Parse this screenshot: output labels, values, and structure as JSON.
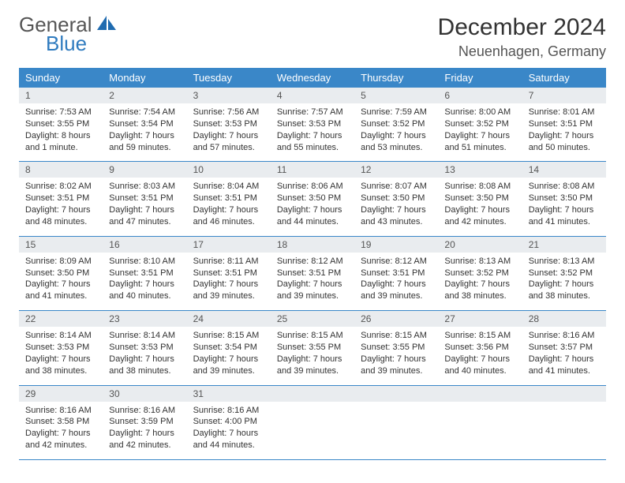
{
  "brand": {
    "word1": "General",
    "word2": "Blue",
    "shape_color": "#1f6bb0"
  },
  "header": {
    "title": "December 2024",
    "location": "Neuenhagen, Germany"
  },
  "colors": {
    "header_bg": "#3a87c8",
    "header_fg": "#ffffff",
    "daynum_bg": "#e9ecef",
    "row_border": "#3a87c8",
    "text": "#333333"
  },
  "day_labels": [
    "Sunday",
    "Monday",
    "Tuesday",
    "Wednesday",
    "Thursday",
    "Friday",
    "Saturday"
  ],
  "weeks": [
    [
      {
        "n": "1",
        "sr": "Sunrise: 7:53 AM",
        "ss": "Sunset: 3:55 PM",
        "d1": "Daylight: 8 hours",
        "d2": "and 1 minute."
      },
      {
        "n": "2",
        "sr": "Sunrise: 7:54 AM",
        "ss": "Sunset: 3:54 PM",
        "d1": "Daylight: 7 hours",
        "d2": "and 59 minutes."
      },
      {
        "n": "3",
        "sr": "Sunrise: 7:56 AM",
        "ss": "Sunset: 3:53 PM",
        "d1": "Daylight: 7 hours",
        "d2": "and 57 minutes."
      },
      {
        "n": "4",
        "sr": "Sunrise: 7:57 AM",
        "ss": "Sunset: 3:53 PM",
        "d1": "Daylight: 7 hours",
        "d2": "and 55 minutes."
      },
      {
        "n": "5",
        "sr": "Sunrise: 7:59 AM",
        "ss": "Sunset: 3:52 PM",
        "d1": "Daylight: 7 hours",
        "d2": "and 53 minutes."
      },
      {
        "n": "6",
        "sr": "Sunrise: 8:00 AM",
        "ss": "Sunset: 3:52 PM",
        "d1": "Daylight: 7 hours",
        "d2": "and 51 minutes."
      },
      {
        "n": "7",
        "sr": "Sunrise: 8:01 AM",
        "ss": "Sunset: 3:51 PM",
        "d1": "Daylight: 7 hours",
        "d2": "and 50 minutes."
      }
    ],
    [
      {
        "n": "8",
        "sr": "Sunrise: 8:02 AM",
        "ss": "Sunset: 3:51 PM",
        "d1": "Daylight: 7 hours",
        "d2": "and 48 minutes."
      },
      {
        "n": "9",
        "sr": "Sunrise: 8:03 AM",
        "ss": "Sunset: 3:51 PM",
        "d1": "Daylight: 7 hours",
        "d2": "and 47 minutes."
      },
      {
        "n": "10",
        "sr": "Sunrise: 8:04 AM",
        "ss": "Sunset: 3:51 PM",
        "d1": "Daylight: 7 hours",
        "d2": "and 46 minutes."
      },
      {
        "n": "11",
        "sr": "Sunrise: 8:06 AM",
        "ss": "Sunset: 3:50 PM",
        "d1": "Daylight: 7 hours",
        "d2": "and 44 minutes."
      },
      {
        "n": "12",
        "sr": "Sunrise: 8:07 AM",
        "ss": "Sunset: 3:50 PM",
        "d1": "Daylight: 7 hours",
        "d2": "and 43 minutes."
      },
      {
        "n": "13",
        "sr": "Sunrise: 8:08 AM",
        "ss": "Sunset: 3:50 PM",
        "d1": "Daylight: 7 hours",
        "d2": "and 42 minutes."
      },
      {
        "n": "14",
        "sr": "Sunrise: 8:08 AM",
        "ss": "Sunset: 3:50 PM",
        "d1": "Daylight: 7 hours",
        "d2": "and 41 minutes."
      }
    ],
    [
      {
        "n": "15",
        "sr": "Sunrise: 8:09 AM",
        "ss": "Sunset: 3:50 PM",
        "d1": "Daylight: 7 hours",
        "d2": "and 41 minutes."
      },
      {
        "n": "16",
        "sr": "Sunrise: 8:10 AM",
        "ss": "Sunset: 3:51 PM",
        "d1": "Daylight: 7 hours",
        "d2": "and 40 minutes."
      },
      {
        "n": "17",
        "sr": "Sunrise: 8:11 AM",
        "ss": "Sunset: 3:51 PM",
        "d1": "Daylight: 7 hours",
        "d2": "and 39 minutes."
      },
      {
        "n": "18",
        "sr": "Sunrise: 8:12 AM",
        "ss": "Sunset: 3:51 PM",
        "d1": "Daylight: 7 hours",
        "d2": "and 39 minutes."
      },
      {
        "n": "19",
        "sr": "Sunrise: 8:12 AM",
        "ss": "Sunset: 3:51 PM",
        "d1": "Daylight: 7 hours",
        "d2": "and 39 minutes."
      },
      {
        "n": "20",
        "sr": "Sunrise: 8:13 AM",
        "ss": "Sunset: 3:52 PM",
        "d1": "Daylight: 7 hours",
        "d2": "and 38 minutes."
      },
      {
        "n": "21",
        "sr": "Sunrise: 8:13 AM",
        "ss": "Sunset: 3:52 PM",
        "d1": "Daylight: 7 hours",
        "d2": "and 38 minutes."
      }
    ],
    [
      {
        "n": "22",
        "sr": "Sunrise: 8:14 AM",
        "ss": "Sunset: 3:53 PM",
        "d1": "Daylight: 7 hours",
        "d2": "and 38 minutes."
      },
      {
        "n": "23",
        "sr": "Sunrise: 8:14 AM",
        "ss": "Sunset: 3:53 PM",
        "d1": "Daylight: 7 hours",
        "d2": "and 38 minutes."
      },
      {
        "n": "24",
        "sr": "Sunrise: 8:15 AM",
        "ss": "Sunset: 3:54 PM",
        "d1": "Daylight: 7 hours",
        "d2": "and 39 minutes."
      },
      {
        "n": "25",
        "sr": "Sunrise: 8:15 AM",
        "ss": "Sunset: 3:55 PM",
        "d1": "Daylight: 7 hours",
        "d2": "and 39 minutes."
      },
      {
        "n": "26",
        "sr": "Sunrise: 8:15 AM",
        "ss": "Sunset: 3:55 PM",
        "d1": "Daylight: 7 hours",
        "d2": "and 39 minutes."
      },
      {
        "n": "27",
        "sr": "Sunrise: 8:15 AM",
        "ss": "Sunset: 3:56 PM",
        "d1": "Daylight: 7 hours",
        "d2": "and 40 minutes."
      },
      {
        "n": "28",
        "sr": "Sunrise: 8:16 AM",
        "ss": "Sunset: 3:57 PM",
        "d1": "Daylight: 7 hours",
        "d2": "and 41 minutes."
      }
    ],
    [
      {
        "n": "29",
        "sr": "Sunrise: 8:16 AM",
        "ss": "Sunset: 3:58 PM",
        "d1": "Daylight: 7 hours",
        "d2": "and 42 minutes."
      },
      {
        "n": "30",
        "sr": "Sunrise: 8:16 AM",
        "ss": "Sunset: 3:59 PM",
        "d1": "Daylight: 7 hours",
        "d2": "and 42 minutes."
      },
      {
        "n": "31",
        "sr": "Sunrise: 8:16 AM",
        "ss": "Sunset: 4:00 PM",
        "d1": "Daylight: 7 hours",
        "d2": "and 44 minutes."
      },
      null,
      null,
      null,
      null
    ]
  ]
}
